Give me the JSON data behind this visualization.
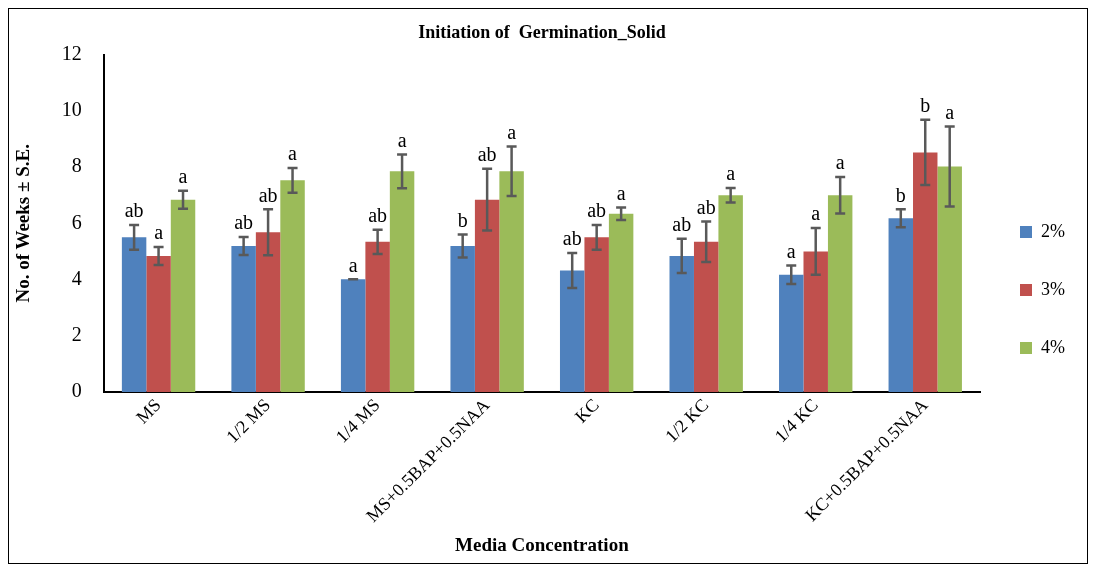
{
  "chart_data": {
    "type": "bar",
    "title": "Initiation of  Germination_Solid",
    "xlabel": "Media Concentration",
    "ylabel": "No. of Weeks ± S.E.",
    "categories": [
      "MS",
      "1/2 MS",
      "1/4 MS",
      "MS+0.5BAP+0.5NAA",
      "KC",
      "1/2 KC",
      "1/4 KC",
      "KC+0.5BAP+0.5NAA"
    ],
    "series": [
      {
        "name": "2%",
        "color": "#4f81bd",
        "values": [
          5.5,
          5.19,
          4.01,
          5.19,
          4.32,
          4.84,
          4.17,
          6.18
        ],
        "errors": [
          0.44,
          0.32,
          0,
          0.41,
          0.62,
          0.61,
          0.33,
          0.32
        ],
        "value_labels": [
          "ab",
          "ab",
          "a",
          "b",
          "ab",
          "ab",
          "a",
          "b"
        ]
      },
      {
        "name": "3%",
        "color": "#c0504d",
        "values": [
          4.84,
          5.68,
          5.34,
          6.84,
          5.5,
          5.34,
          5.0,
          8.52
        ],
        "errors": [
          0.32,
          0.82,
          0.43,
          1.1,
          0.44,
          0.72,
          0.83,
          1.16
        ],
        "value_labels": [
          "a",
          "ab",
          "ab",
          "ab",
          "ab",
          "ab",
          "a",
          "b"
        ]
      },
      {
        "name": "4%",
        "color": "#9bbb59",
        "values": [
          6.84,
          7.53,
          7.85,
          7.85,
          6.34,
          7.0,
          7.0,
          8.02
        ],
        "errors": [
          0.32,
          0.44,
          0.6,
          0.88,
          0.22,
          0.26,
          0.65,
          1.42
        ],
        "value_labels": [
          "a",
          "a",
          "a",
          "a",
          "a",
          "a",
          "a",
          "a"
        ]
      }
    ],
    "ylim": [
      0,
      12
    ],
    "yticks": [
      0,
      2,
      4,
      6,
      8,
      10,
      12
    ],
    "grid": false,
    "legend": "right"
  }
}
